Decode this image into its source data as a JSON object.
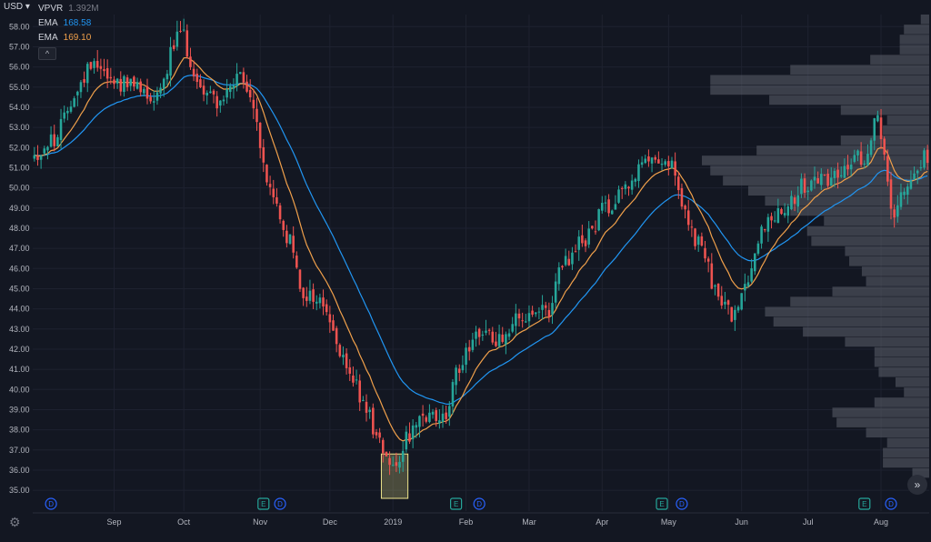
{
  "header": {
    "currency": "USD",
    "legend": [
      {
        "label": "VPVR",
        "value": "1.392M",
        "color": "#787b86"
      },
      {
        "label": "EMA",
        "value": "168.58",
        "color": "#2196f3"
      },
      {
        "label": "EMA",
        "value": "169.10",
        "color": "#f0a04b"
      }
    ],
    "collapse_glyph": "^"
  },
  "colors": {
    "background": "#131722",
    "grid": "#1e2230",
    "up": "#26a69a",
    "down": "#ef5350",
    "ema_fast": "#f0a04b",
    "ema_slow": "#2196f3",
    "volume_profile": "#5d606b",
    "axis_text": "#b2b5be",
    "highlight": "#f0e68c"
  },
  "chart_data": {
    "type": "candlestick",
    "title": "",
    "y_axis": {
      "ylim": [
        34.6,
        58.6
      ],
      "ticks": [
        "58.00",
        "57.00",
        "56.00",
        "55.00",
        "54.00",
        "53.00",
        "52.00",
        "51.00",
        "50.00",
        "49.00",
        "48.00",
        "47.00",
        "46.00",
        "45.00",
        "44.00",
        "43.00",
        "42.00",
        "41.00",
        "40.00",
        "39.00",
        "38.00",
        "37.00",
        "36.00",
        "35.00"
      ]
    },
    "x_axis": {
      "ticks": [
        {
          "label": "Sep",
          "bar": 24
        },
        {
          "label": "Oct",
          "bar": 45
        },
        {
          "label": "Nov",
          "bar": 68
        },
        {
          "label": "Dec",
          "bar": 89
        },
        {
          "label": "2019",
          "bar": 108
        },
        {
          "label": "Feb",
          "bar": 130
        },
        {
          "label": "Mar",
          "bar": 149
        },
        {
          "label": "Apr",
          "bar": 171
        },
        {
          "label": "May",
          "bar": 191
        },
        {
          "label": "Jun",
          "bar": 213
        },
        {
          "label": "Jul",
          "bar": 233
        },
        {
          "label": "Aug",
          "bar": 255
        }
      ]
    },
    "price_anchors": [
      [
        0,
        51.6
      ],
      [
        6,
        52.4
      ],
      [
        12,
        54.6
      ],
      [
        18,
        56.4
      ],
      [
        24,
        55.3
      ],
      [
        30,
        55.0
      ],
      [
        36,
        54.6
      ],
      [
        44,
        57.6
      ],
      [
        50,
        55.0
      ],
      [
        56,
        54.3
      ],
      [
        62,
        55.4
      ],
      [
        66,
        54.0
      ],
      [
        70,
        50.3
      ],
      [
        76,
        47.6
      ],
      [
        81,
        44.8
      ],
      [
        86,
        44.4
      ],
      [
        94,
        41.2
      ],
      [
        100,
        39.0
      ],
      [
        104,
        37.4
      ],
      [
        108,
        36.3
      ],
      [
        113,
        37.8
      ],
      [
        118,
        38.5
      ],
      [
        124,
        38.7
      ],
      [
        128,
        41.2
      ],
      [
        133,
        42.9
      ],
      [
        139,
        42.5
      ],
      [
        145,
        43.4
      ],
      [
        150,
        43.5
      ],
      [
        154,
        43.8
      ],
      [
        160,
        46.3
      ],
      [
        166,
        47.5
      ],
      [
        172,
        49.0
      ],
      [
        178,
        50.2
      ],
      [
        184,
        51.1
      ],
      [
        188,
        51.6
      ],
      [
        192,
        51.0
      ],
      [
        196,
        48.5
      ],
      [
        200,
        47.2
      ],
      [
        206,
        44.6
      ],
      [
        211,
        43.5
      ],
      [
        214,
        45.4
      ],
      [
        220,
        48.2
      ],
      [
        226,
        49.2
      ],
      [
        232,
        50.1
      ],
      [
        238,
        50.5
      ],
      [
        244,
        50.9
      ],
      [
        250,
        51.6
      ],
      [
        254,
        53.7
      ],
      [
        256,
        51.4
      ],
      [
        258,
        48.8
      ],
      [
        263,
        50.4
      ],
      [
        268,
        51.5
      ]
    ],
    "events": [
      {
        "type": "D",
        "bar": 5
      },
      {
        "type": "E",
        "bar": 69
      },
      {
        "type": "D",
        "bar": 74
      },
      {
        "type": "E",
        "bar": 127
      },
      {
        "type": "D",
        "bar": 134
      },
      {
        "type": "E",
        "bar": 189
      },
      {
        "type": "D",
        "bar": 195
      },
      {
        "type": "E",
        "bar": 250
      },
      {
        "type": "D",
        "bar": 258
      }
    ],
    "highlight": {
      "bar_from": 105,
      "bar_to": 113,
      "price_low": 34.6,
      "price_high": 36.8
    },
    "series": [
      {
        "name": "EMA",
        "value": "169.10"
      },
      {
        "name": "EMA",
        "value": "168.58"
      }
    ]
  },
  "ui": {
    "settings_glyph": "⚙",
    "scroll_glyph": "»"
  }
}
